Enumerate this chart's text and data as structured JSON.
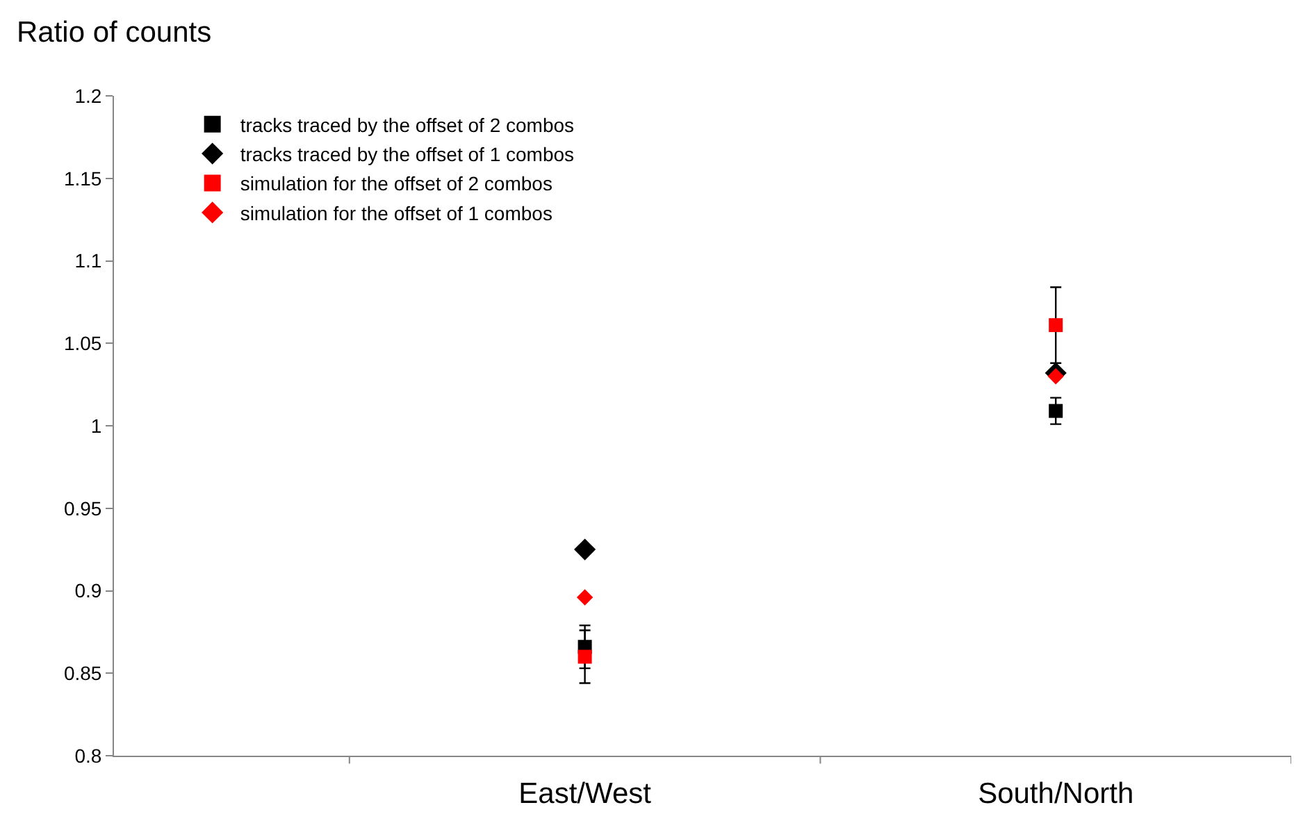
{
  "chart_data": {
    "type": "scatter",
    "ylabel": "Ratio of counts",
    "categories": [
      "East/West",
      "South/North"
    ],
    "series": [
      {
        "name": "tracks traced by the offset of 2 combos",
        "color": "#000000",
        "marker": "square",
        "values": [
          0.866,
          1.009
        ],
        "errors": [
          0.013,
          0.008
        ]
      },
      {
        "name": "tracks traced by the offset of 1 combos",
        "color": "#000000",
        "marker": "diamond",
        "values": [
          0.925,
          1.032
        ]
      },
      {
        "name": "simulation for the offset of 2 combos",
        "color": "#ff0000",
        "marker": "square",
        "values": [
          0.86,
          1.061
        ],
        "errors": [
          0.016,
          0.023
        ]
      },
      {
        "name": "simulation for the offset of 1 combos",
        "color": "#ff0000",
        "marker": "diamond",
        "values": [
          0.896,
          1.03
        ]
      }
    ],
    "ylim": [
      0.8,
      1.2
    ],
    "yticks": [
      0.8,
      0.85,
      0.9,
      0.95,
      1,
      1.05,
      1.1,
      1.15,
      1.2
    ],
    "legend": "top left"
  }
}
